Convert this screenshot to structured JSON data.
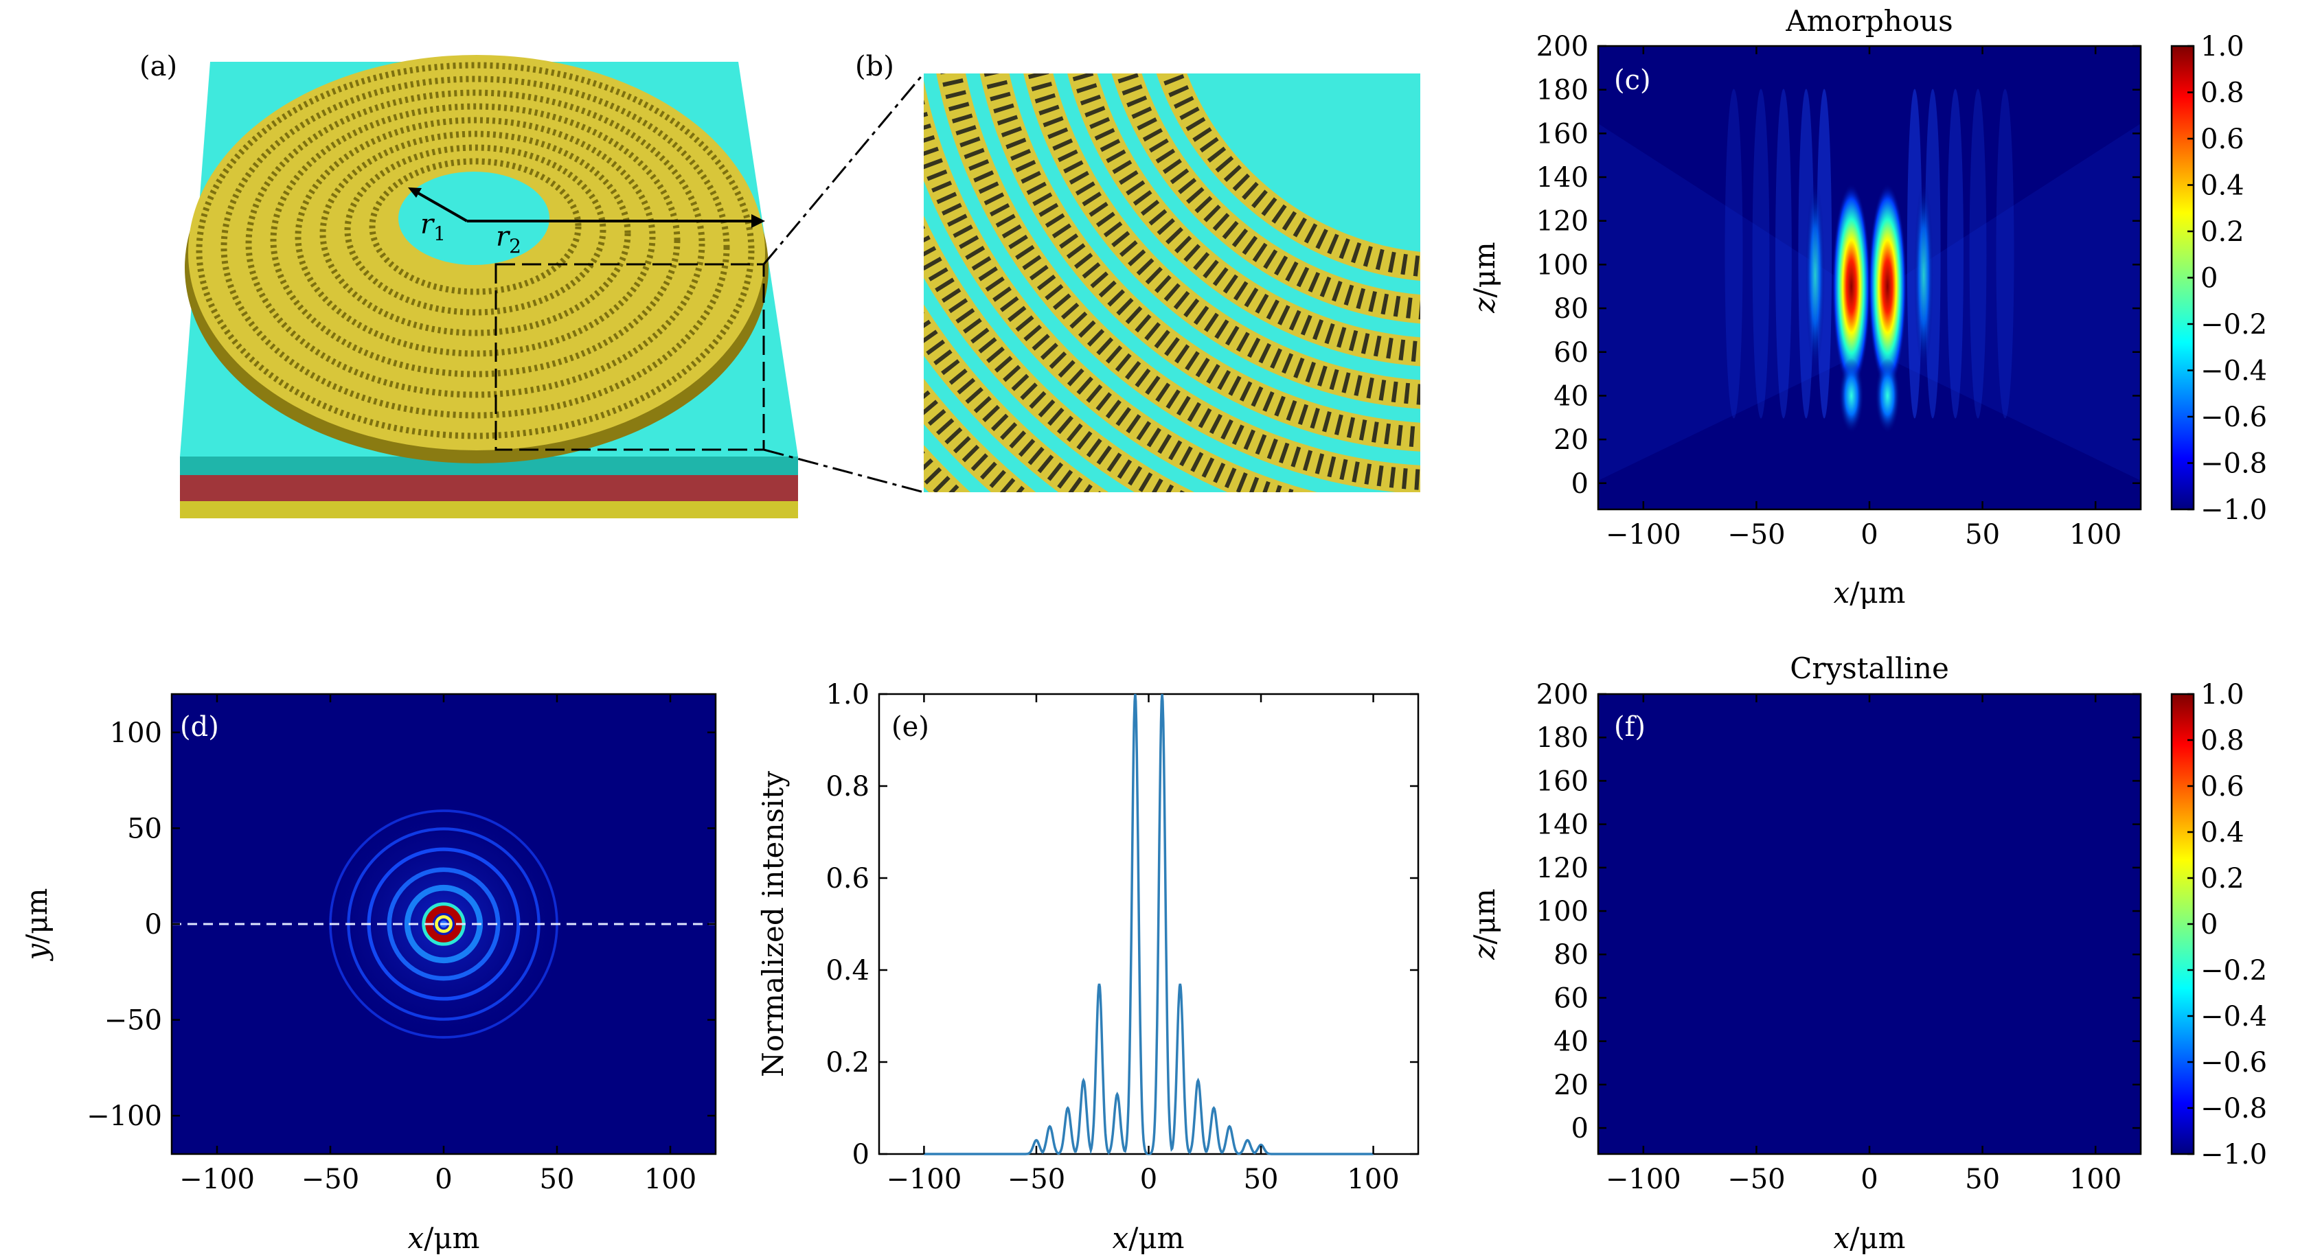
{
  "panels": {
    "a": {
      "label": "(a)",
      "r1": "r",
      "r1_sub": "1",
      "r2": "r",
      "r2_sub": "2"
    },
    "b": {
      "label": "(b)"
    }
  },
  "colors": {
    "substrate": "#3fe9dd",
    "ring": "#d8c63a",
    "ring_dark": "#9b8b16",
    "layer_red": "#a0363a",
    "layer_yellow": "#cfc52e",
    "line_blue": "#2f7fb8",
    "field_bg": "#00007f"
  },
  "chart_data": [
    {
      "id": "c",
      "type": "heatmap",
      "panel_label": "(c)",
      "title": "Amorphous",
      "xlabel_var": "x",
      "xlabel_unit": "/μm",
      "ylabel_var": "z",
      "ylabel_unit": "/μm",
      "xlim": [
        -120,
        120
      ],
      "ylim": [
        -12,
        200
      ],
      "xticks": [
        -100,
        -50,
        0,
        50,
        100
      ],
      "xtick_labels": [
        "−100",
        "−50",
        "0",
        "50",
        "100"
      ],
      "yticks": [
        0,
        20,
        40,
        60,
        80,
        100,
        120,
        140,
        160,
        180,
        200
      ],
      "ytick_labels": [
        "0",
        "20",
        "40",
        "60",
        "80",
        "100",
        "120",
        "140",
        "160",
        "180",
        "200"
      ],
      "colorbar": {
        "min": -1.0,
        "max": 1.0,
        "colormap": "jet",
        "ticks": [
          1.0,
          0.8,
          0.6,
          0.4,
          0.2,
          0,
          -0.2,
          -0.4,
          -0.6,
          -0.8,
          -1.0
        ],
        "tick_labels": [
          "1.0",
          "0.8",
          "0.6",
          "0.4",
          "0.2",
          "0",
          "−0.2",
          "−0.4",
          "−0.6",
          "−0.8",
          "−1.0"
        ]
      },
      "features": {
        "lobe_x": [
          -8,
          8
        ],
        "lobe_z_center": 90,
        "focal_z_range": [
          40,
          120
        ]
      }
    },
    {
      "id": "d",
      "type": "heatmap",
      "panel_label": "(d)",
      "xlabel_var": "x",
      "xlabel_unit": "/μm",
      "ylabel_var": "y",
      "ylabel_unit": "/μm",
      "xlim": [
        -120,
        120
      ],
      "ylim": [
        -120,
        120
      ],
      "xticks": [
        -100,
        -50,
        0,
        50,
        100
      ],
      "xtick_labels": [
        "−100",
        "−50",
        "0",
        "50",
        "100"
      ],
      "yticks": [
        100,
        50,
        0,
        -50,
        -100
      ],
      "ytick_labels": [
        "100",
        "50",
        "0",
        "−50",
        "−100"
      ],
      "features": {
        "cut_line_y": 0,
        "ring_radii": [
          0,
          8,
          16,
          24,
          33,
          42,
          50
        ]
      }
    },
    {
      "id": "e",
      "type": "line",
      "panel_label": "(e)",
      "xlabel_var": "x",
      "xlabel_unit": "/μm",
      "ylabel": "Normalized intensity",
      "xlim": [
        -120,
        120
      ],
      "ylim": [
        0,
        1.0
      ],
      "xticks": [
        -100,
        -50,
        0,
        50,
        100
      ],
      "xtick_labels": [
        "−100",
        "−50",
        "0",
        "50",
        "100"
      ],
      "yticks": [
        0,
        0.2,
        0.4,
        0.6,
        0.8,
        1.0
      ],
      "ytick_labels": [
        "0",
        "0.2",
        "0.4",
        "0.6",
        "0.8",
        "1.0"
      ],
      "series": [
        {
          "name": "intensity",
          "peaks_x": [
            -50,
            -44,
            -36,
            -29,
            -22,
            -14,
            -6,
            6,
            14,
            22,
            29,
            36,
            44,
            50
          ],
          "peaks_y": [
            0.03,
            0.06,
            0.1,
            0.16,
            0.37,
            0.13,
            1.0,
            1.0,
            0.37,
            0.16,
            0.1,
            0.06,
            0.03,
            0.02
          ]
        }
      ]
    },
    {
      "id": "f",
      "type": "heatmap",
      "panel_label": "(f)",
      "title": "Crystalline",
      "xlabel_var": "x",
      "xlabel_unit": "/μm",
      "ylabel_var": "z",
      "ylabel_unit": "/μm",
      "xlim": [
        -120,
        120
      ],
      "ylim": [
        -12,
        200
      ],
      "xticks": [
        -100,
        -50,
        0,
        50,
        100
      ],
      "xtick_labels": [
        "−100",
        "−50",
        "0",
        "50",
        "100"
      ],
      "yticks": [
        0,
        20,
        40,
        60,
        80,
        100,
        120,
        140,
        160,
        180,
        200
      ],
      "ytick_labels": [
        "0",
        "20",
        "40",
        "60",
        "80",
        "100",
        "120",
        "140",
        "160",
        "180",
        "200"
      ],
      "colorbar": {
        "min": -1.0,
        "max": 1.0,
        "colormap": "jet",
        "ticks": [
          1.0,
          0.8,
          0.6,
          0.4,
          0.2,
          0,
          -0.2,
          -0.4,
          -0.6,
          -0.8,
          -1.0
        ],
        "tick_labels": [
          "1.0",
          "0.8",
          "0.6",
          "0.4",
          "0.2",
          "0",
          "−0.2",
          "−0.4",
          "−0.6",
          "−0.8",
          "−1.0"
        ]
      }
    }
  ]
}
